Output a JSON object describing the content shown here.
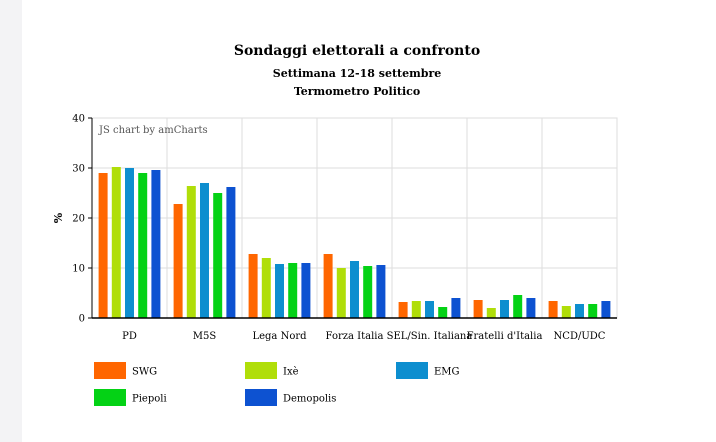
{
  "chart_data": {
    "type": "bar",
    "title": "Sondaggi elettorali a confronto",
    "subtitle": "Settimana 12-18 settembre",
    "subtitle2": "Termometro Politico",
    "ylabel": "%",
    "xlabel": "",
    "ylim": [
      0,
      40
    ],
    "yticks": [
      0,
      10,
      20,
      30,
      40
    ],
    "grid": true,
    "legend_position": "bottom",
    "credit": "JS chart by amCharts",
    "categories": [
      "PD",
      "M5S",
      "Lega Nord",
      "Forza Italia",
      "SEL/Sin. Italiana",
      "Fratelli d'Italia",
      "NCD/UDC"
    ],
    "series": [
      {
        "name": "SWG",
        "color": "#ff6600",
        "values": [
          29.0,
          22.8,
          12.8,
          12.8,
          3.2,
          3.6,
          3.4
        ]
      },
      {
        "name": "Ixè",
        "color": "#b0de09",
        "values": [
          30.2,
          26.4,
          12.0,
          10.0,
          3.4,
          2.0,
          2.4
        ]
      },
      {
        "name": "EMG",
        "color": "#0d8ecf",
        "values": [
          30.0,
          27.0,
          10.8,
          11.4,
          3.4,
          3.6,
          2.8
        ]
      },
      {
        "name": "Piepoli",
        "color": "#04d215",
        "values": [
          29.0,
          25.0,
          11.0,
          10.4,
          2.2,
          4.6,
          2.8
        ]
      },
      {
        "name": "Demopolis",
        "color": "#0d52d1",
        "values": [
          29.6,
          26.2,
          11.0,
          10.6,
          4.0,
          4.0,
          3.4
        ]
      }
    ]
  }
}
